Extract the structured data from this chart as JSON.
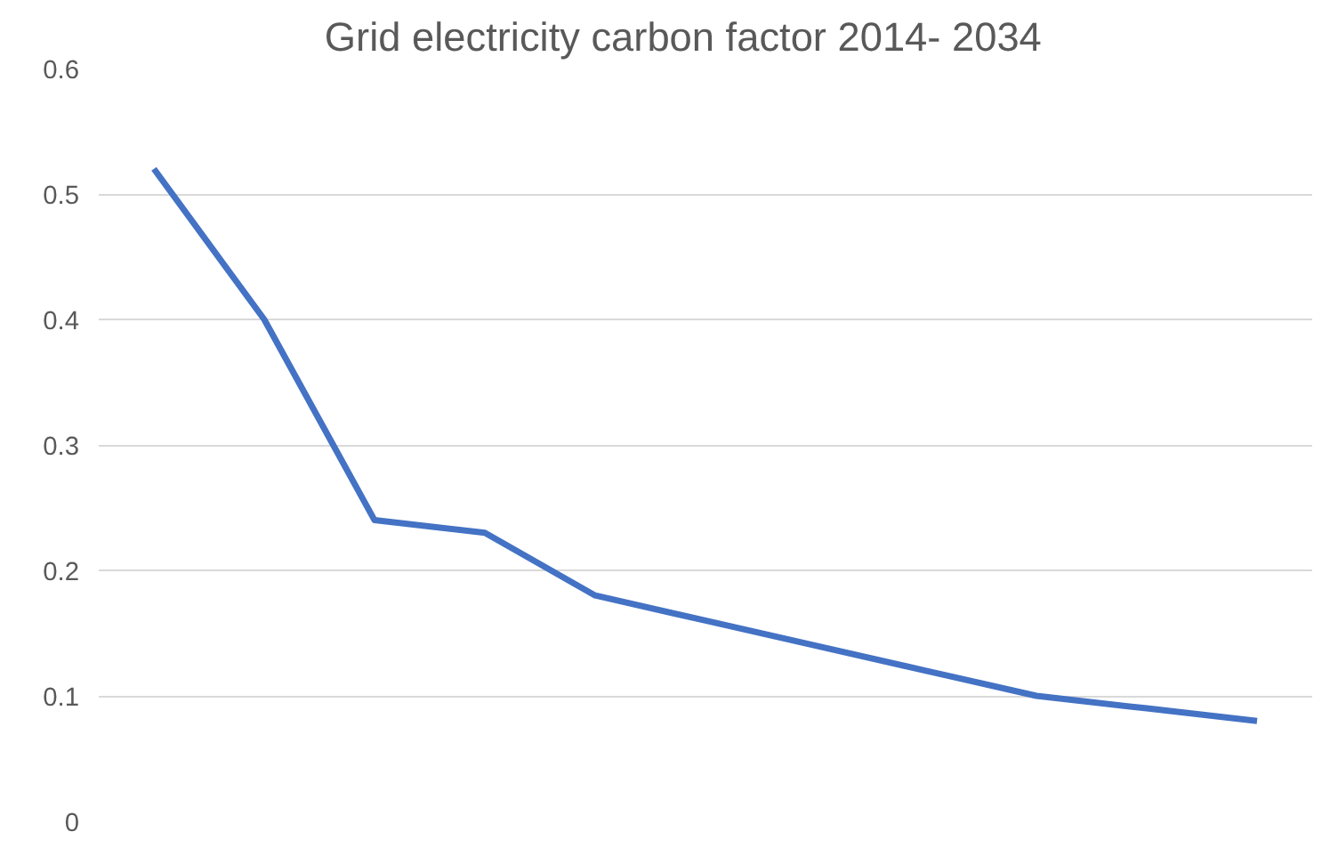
{
  "chart_data": {
    "type": "line",
    "title": "Grid  electricity  carbon factor   2014- 2034",
    "categories": [
      null,
      null,
      null,
      null,
      null,
      null,
      null,
      null,
      null,
      null,
      null
    ],
    "series": [
      {
        "color": "#4472c4",
        "values": [
          0.52,
          0.4,
          0.24,
          0.23,
          0.18,
          0.16,
          0.14,
          0.12,
          0.1,
          0.09,
          0.08
        ]
      }
    ],
    "ylim": [
      0,
      0.6
    ],
    "yticks": [
      {
        "value": 0,
        "label": "0"
      },
      0.1,
      0.2,
      0.3,
      0.4,
      0.5,
      0.6
    ],
    "grid": "y",
    "tick_labels": "y",
    "marker": "none",
    "line_style": "solid"
  }
}
